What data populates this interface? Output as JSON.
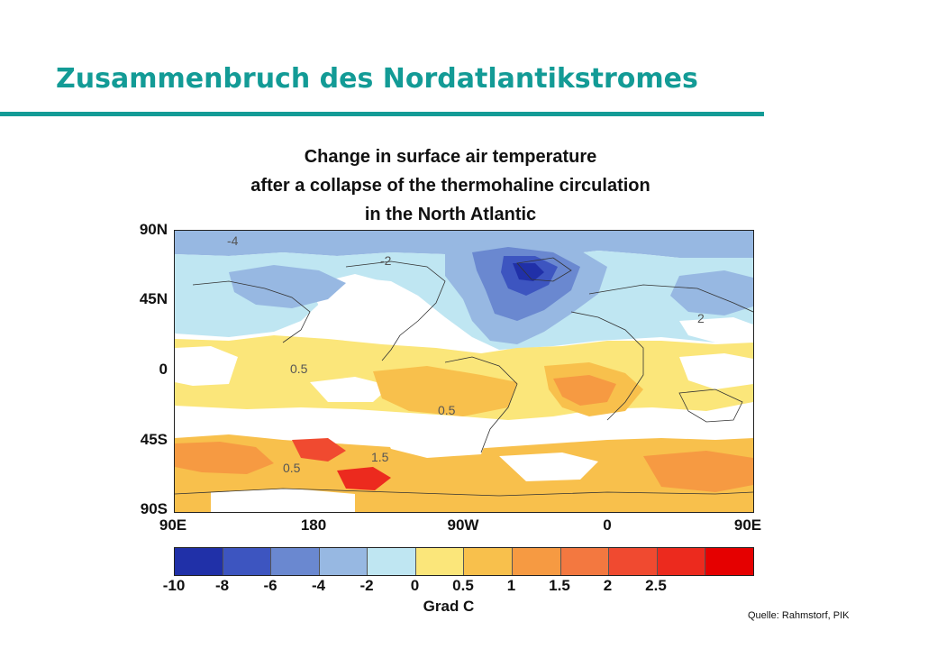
{
  "slide": {
    "title": "Zusammenbruch des Nordatlantikstromes",
    "source": "Quelle:  Rahmstorf, PIK"
  },
  "colors": {
    "accent": "#139b96"
  },
  "map": {
    "title_lines": [
      "Change in surface air temperature",
      "after a collapse of the thermohaline circulation",
      "in the North Atlantic"
    ],
    "lat_labels": [
      "90N",
      "45N",
      "0",
      "45S",
      "90S"
    ],
    "lon_labels": [
      "90E",
      "180",
      "90W",
      "0",
      "90E"
    ],
    "contour_labels": [
      "-4",
      "-2",
      "0.5",
      "0.5",
      "0.5",
      "2",
      "1.5"
    ],
    "colorbar": {
      "colors": [
        "#2030a8",
        "#3d55c0",
        "#6a88d0",
        "#97b8e2",
        "#bfe6f2",
        "#fbe67a",
        "#f8c04c",
        "#f69a42",
        "#f37840",
        "#f04a30",
        "#ec2a1e",
        "#e50000"
      ],
      "tick_labels": [
        "-10",
        "-8",
        "-6",
        "-4",
        "-2",
        "0",
        "0.5",
        "1",
        "1.5",
        "2",
        "2.5"
      ],
      "unit": "Grad C"
    }
  }
}
